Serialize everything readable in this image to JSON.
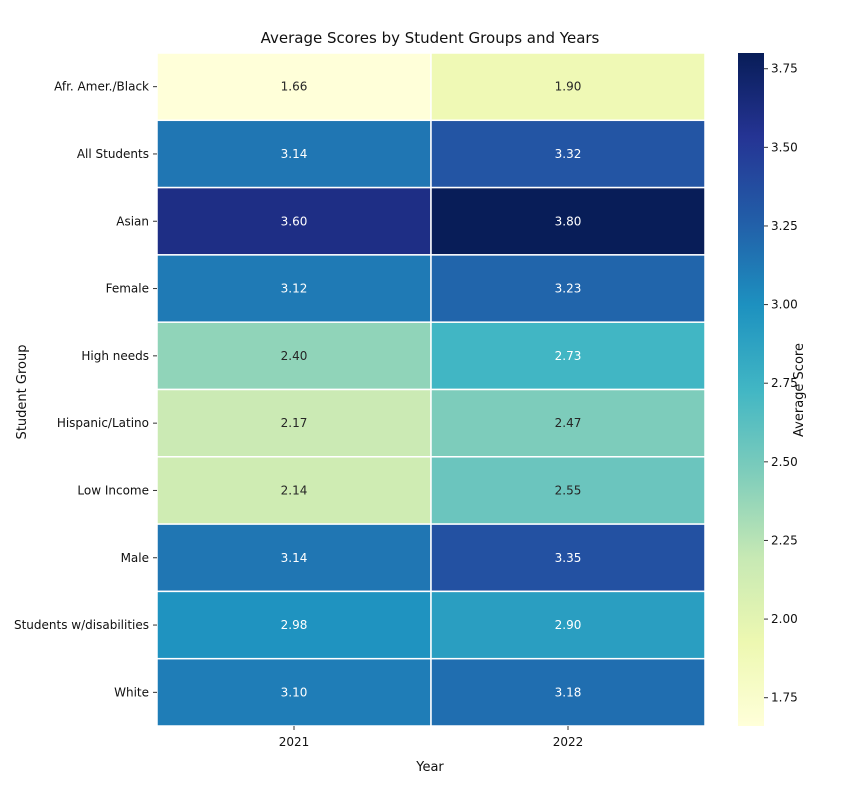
{
  "chart_data": {
    "type": "heatmap",
    "title": "Average Scores by Student Groups and Years",
    "xlabel": "Year",
    "ylabel": "Student Group",
    "x_categories": [
      "2021",
      "2022"
    ],
    "y_categories": [
      "Afr. Amer./Black",
      "All Students",
      "Asian",
      "Female",
      "High needs",
      "Hispanic/Latino",
      "Low Income",
      "Male",
      "Students w/disabilities",
      "White"
    ],
    "values": [
      [
        1.66,
        1.9
      ],
      [
        3.14,
        3.32
      ],
      [
        3.6,
        3.8
      ],
      [
        3.12,
        3.23
      ],
      [
        2.4,
        2.73
      ],
      [
        2.17,
        2.47
      ],
      [
        2.14,
        2.55
      ],
      [
        3.14,
        3.35
      ],
      [
        2.98,
        2.9
      ],
      [
        3.1,
        3.18
      ]
    ],
    "value_format": "2 decimals",
    "colormap": "YlGnBu",
    "colorbar": {
      "label": "Average Score",
      "range": [
        1.66,
        3.8
      ],
      "ticks": [
        1.75,
        2.0,
        2.25,
        2.5,
        2.75,
        3.0,
        3.25,
        3.5,
        3.75
      ],
      "tick_labels": [
        "1.75",
        "2.00",
        "2.25",
        "2.50",
        "2.75",
        "3.00",
        "3.25",
        "3.50",
        "3.75"
      ]
    }
  }
}
